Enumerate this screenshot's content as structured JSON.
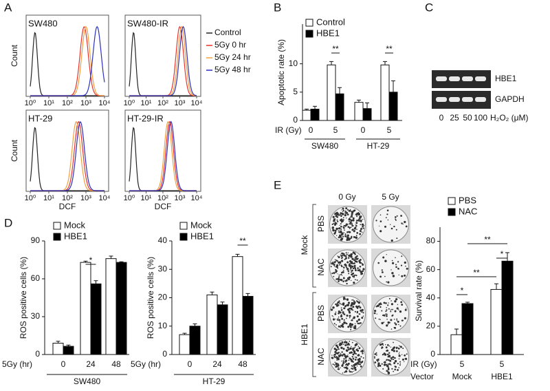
{
  "panel_labels": [
    "A",
    "B",
    "C",
    "D",
    "E"
  ],
  "chart_data": [
    {
      "type": "flow",
      "xlabel": "DCF",
      "ylabel": "Count",
      "log_x": true,
      "xlim": [
        1,
        10000
      ],
      "xticks": [
        {
          "value": 1,
          "label": "10⁰"
        },
        {
          "value": 10,
          "label": "10¹"
        },
        {
          "value": 100,
          "label": "10²"
        },
        {
          "value": 1000,
          "label": "10³"
        },
        {
          "value": 10000,
          "label": "10⁴"
        }
      ],
      "series": [
        {
          "name": "Control",
          "color": "#222222"
        },
        {
          "name": "5Gy 0 hr",
          "color": "#e8322a"
        },
        {
          "name": "5Gy 24 hr",
          "color": "#f0a040"
        },
        {
          "name": "5Gy 48 hr",
          "color": "#2b2fbf"
        }
      ],
      "plots": [
        {
          "title": "SW480",
          "peaks": [
            1.8,
            800,
            1000,
            4000
          ]
        },
        {
          "title": "SW480-IR",
          "peaks": [
            1.8,
            1000,
            1300,
            1600
          ]
        },
        {
          "title": "HT-29",
          "peaks": [
            1.8,
            400,
            300,
            500
          ]
        },
        {
          "title": "HT-29-IR",
          "peaks": [
            1.8,
            250,
            200,
            300
          ]
        }
      ]
    },
    {
      "type": "bar",
      "ylabel": "Apoptotic rate (%)",
      "xlabel": "IR (Gy)",
      "categories": [
        "0",
        "5",
        "0",
        "5"
      ],
      "groups": [
        "SW480",
        "HT-29"
      ],
      "ylim": [
        0,
        17
      ],
      "yticks": [
        0,
        5,
        10
      ],
      "series": [
        {
          "name": "Control",
          "color": "#ffffff",
          "values": [
            1.8,
            9.8,
            3.2,
            9.8
          ],
          "errors": [
            0.2,
            0.6,
            0.4,
            0.6
          ]
        },
        {
          "name": "HBE1",
          "color": "#000000",
          "values": [
            2.0,
            4.7,
            2.1,
            5.0
          ],
          "errors": [
            0.5,
            1.1,
            1.0,
            2.0
          ]
        }
      ],
      "significance": [
        "**",
        "**"
      ]
    },
    {
      "type": "bar",
      "ylabel": "ROS positive cells (%)",
      "xlabel": "5Gy (hr)",
      "categories": [
        "0",
        "24",
        "48"
      ],
      "groups": [
        "SW480"
      ],
      "ylim": [
        0,
        90
      ],
      "yticks": [
        0,
        30,
        60,
        90
      ],
      "series": [
        {
          "name": "Mock",
          "color": "#ffffff",
          "values": [
            9,
            73,
            76
          ],
          "errors": [
            1.5,
            1,
            2
          ]
        },
        {
          "name": "HBE1",
          "color": "#000000",
          "values": [
            6.5,
            56,
            73
          ],
          "errors": [
            1,
            2.5,
            0.5
          ]
        }
      ],
      "significance": [
        "*"
      ]
    },
    {
      "type": "bar",
      "ylabel": "ROS positive cells (%)",
      "xlabel": "5Gy (hr)",
      "categories": [
        "0",
        "24",
        "48"
      ],
      "groups": [
        "HT-29"
      ],
      "ylim": [
        0,
        40
      ],
      "yticks": [
        0,
        10,
        20,
        30,
        40
      ],
      "series": [
        {
          "name": "Mock",
          "color": "#ffffff",
          "values": [
            7,
            21,
            34.5
          ],
          "errors": [
            0.5,
            1,
            0.8
          ]
        },
        {
          "name": "HBE1",
          "color": "#000000",
          "values": [
            10,
            17.5,
            20.5
          ],
          "errors": [
            0.8,
            1,
            1
          ]
        }
      ],
      "significance": [
        "**"
      ]
    },
    {
      "type": "bar",
      "ylabel": "Survival rate (%)",
      "xlabel": "Vector",
      "categories": [
        "Mock",
        "HBE1"
      ],
      "ir_label": "IR (Gy)",
      "ir_values": [
        "5",
        "5"
      ],
      "ylim": [
        0,
        90
      ],
      "yticks": [
        0,
        20,
        40,
        60,
        80
      ],
      "series": [
        {
          "name": "PBS",
          "color": "#ffffff",
          "values": [
            14,
            46
          ],
          "errors": [
            4,
            4
          ]
        },
        {
          "name": "NAC",
          "color": "#000000",
          "values": [
            36,
            66
          ],
          "errors": [
            1,
            6
          ]
        }
      ],
      "significance": [
        "*",
        "**",
        "**",
        "*"
      ]
    }
  ],
  "gel": {
    "bands": [
      "HBE1",
      "GAPDH"
    ],
    "lanes": [
      "0",
      "25",
      "50",
      "100"
    ],
    "unit": "H₂O₂ (μM)"
  },
  "colony": {
    "columns": [
      "0 Gy",
      "5 Gy"
    ],
    "rows": [
      "PBS",
      "NAC",
      "PBS",
      "NAC"
    ],
    "groups": [
      "Mock",
      "HBE1"
    ]
  }
}
